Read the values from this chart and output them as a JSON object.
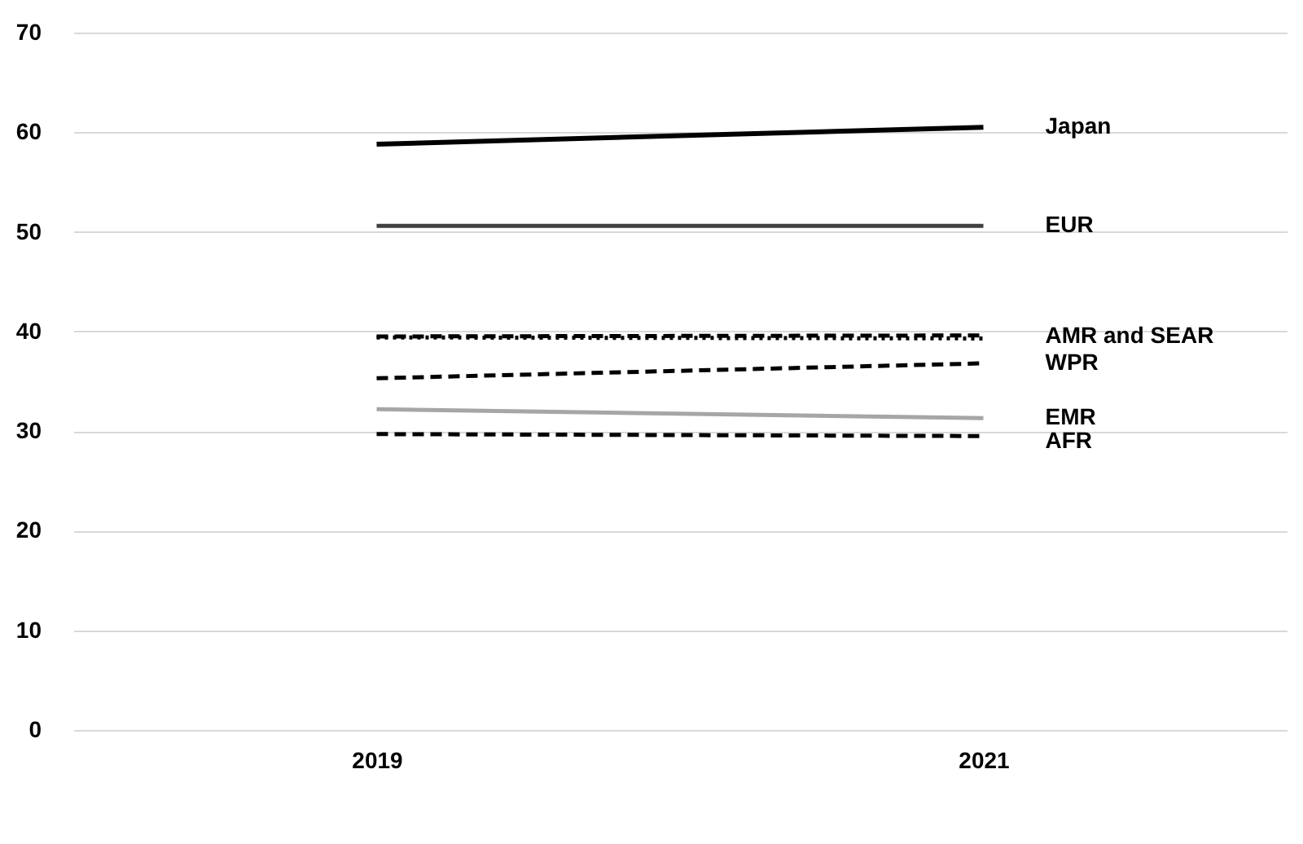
{
  "chart_data": {
    "type": "line",
    "categories": [
      "2019",
      "2021"
    ],
    "series": [
      {
        "name": "Japan",
        "color": "#000000",
        "line_style": "solid",
        "values": [
          58.8,
          60.5
        ]
      },
      {
        "name": "EUR",
        "color": "#404040",
        "line_style": "solid",
        "values": [
          50.6,
          50.6
        ]
      },
      {
        "color": "#000000",
        "line_style": "dashed",
        "values": [
          39.5,
          39.6
        ]
      },
      {
        "color": "#000000",
        "line_style": "dotted",
        "values": [
          39.4,
          39.3
        ]
      },
      {
        "name": "WPR",
        "color": "#000000",
        "line_style": "dashed",
        "values": [
          35.3,
          36.8
        ]
      },
      {
        "name": "EMR",
        "color": "#a6a6a6",
        "line_style": "solid",
        "values": [
          32.2,
          31.3
        ]
      },
      {
        "name": "AFR",
        "color": "#000000",
        "line_style": "dashed",
        "values": [
          29.7,
          29.5
        ]
      }
    ],
    "annotations": [
      {
        "text": "AMR and SEAR",
        "x": "2021",
        "y": 39.5
      }
    ],
    "ylim": [
      0,
      70
    ],
    "yticks": [
      0,
      10,
      20,
      30,
      40,
      50,
      60,
      70
    ],
    "grid": "y",
    "legend": false,
    "marker": "none"
  }
}
